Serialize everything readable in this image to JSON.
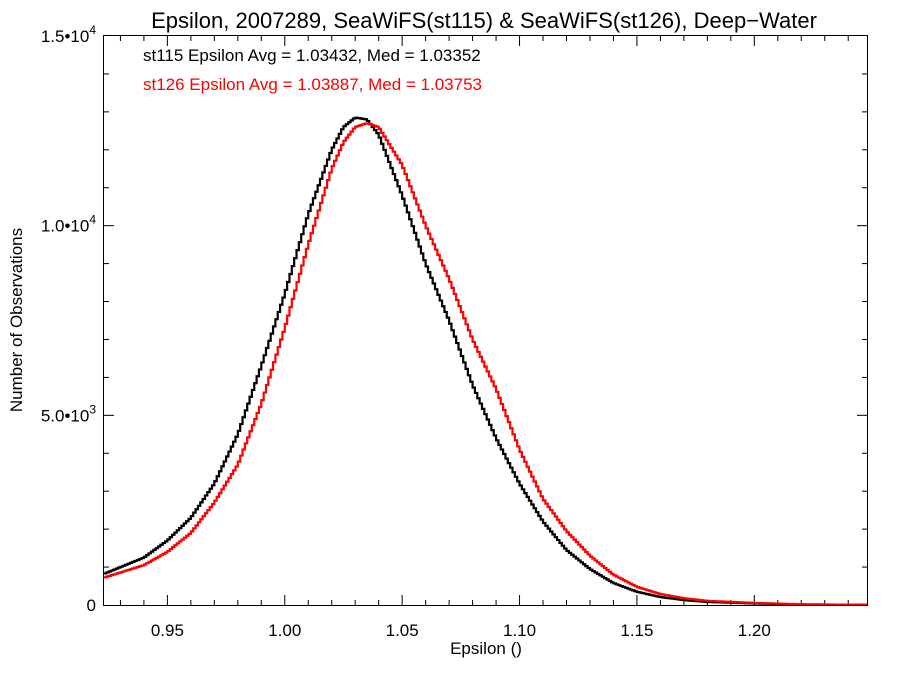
{
  "chart_data": {
    "type": "line",
    "style": "histogram-step",
    "title": "Epsilon, 2007289, SeaWiFS(st115) & SeaWiFS(st126), Deep−Water",
    "xlabel": "Epsilon ()",
    "ylabel": "Number of Observations",
    "xlim": [
      0.923,
      1.248
    ],
    "ylim": [
      0,
      15000
    ],
    "grid": false,
    "x_ticks": [
      {
        "value": 0.95,
        "label": "0.95"
      },
      {
        "value": 1.0,
        "label": "1.00"
      },
      {
        "value": 1.05,
        "label": "1.05"
      },
      {
        "value": 1.1,
        "label": "1.10"
      },
      {
        "value": 1.15,
        "label": "1.15"
      },
      {
        "value": 1.2,
        "label": "1.20"
      }
    ],
    "y_ticks": [
      {
        "value": 0,
        "mant": "0",
        "exp": ""
      },
      {
        "value": 5000,
        "mant": "5.0•10",
        "exp": "3"
      },
      {
        "value": 10000,
        "mant": "1.0•10",
        "exp": "4"
      },
      {
        "value": 15000,
        "mant": "1.5•10",
        "exp": "4"
      }
    ],
    "annotations": [
      {
        "text": "st115 Epsilon Avg = 1.03432, Med = 1.03352",
        "color": "#000000"
      },
      {
        "text": "st126 Epsilon Avg = 1.03887, Med = 1.03753",
        "color": "#ff0000"
      }
    ],
    "series": [
      {
        "color": "#000000",
        "x": [
          0.923,
          0.94,
          0.95,
          0.96,
          0.97,
          0.98,
          0.99,
          1.0,
          1.01,
          1.02,
          1.025,
          1.03,
          1.035,
          1.04,
          1.05,
          1.06,
          1.07,
          1.08,
          1.09,
          1.1,
          1.11,
          1.12,
          1.13,
          1.14,
          1.15,
          1.16,
          1.17,
          1.18,
          1.2,
          1.22,
          1.248
        ],
        "values": [
          820,
          1250,
          1700,
          2300,
          3200,
          4500,
          6300,
          8200,
          10300,
          12000,
          12600,
          12850,
          12800,
          12400,
          10800,
          9000,
          7500,
          5800,
          4400,
          3200,
          2200,
          1450,
          950,
          580,
          350,
          210,
          130,
          80,
          40,
          15,
          5
        ]
      },
      {
        "color": "#ff0000",
        "x": [
          0.923,
          0.94,
          0.95,
          0.96,
          0.97,
          0.98,
          0.99,
          1.0,
          1.01,
          1.02,
          1.025,
          1.03,
          1.035,
          1.04,
          1.05,
          1.06,
          1.07,
          1.08,
          1.09,
          1.1,
          1.11,
          1.12,
          1.13,
          1.14,
          1.15,
          1.16,
          1.17,
          1.18,
          1.2,
          1.22,
          1.248
        ],
        "values": [
          720,
          1050,
          1400,
          1900,
          2700,
          3700,
          5300,
          7300,
          9500,
          11500,
          12200,
          12600,
          12700,
          12600,
          11600,
          10000,
          8600,
          7000,
          5700,
          4100,
          2800,
          1950,
          1300,
          800,
          480,
          290,
          180,
          110,
          55,
          20,
          5
        ]
      }
    ]
  }
}
